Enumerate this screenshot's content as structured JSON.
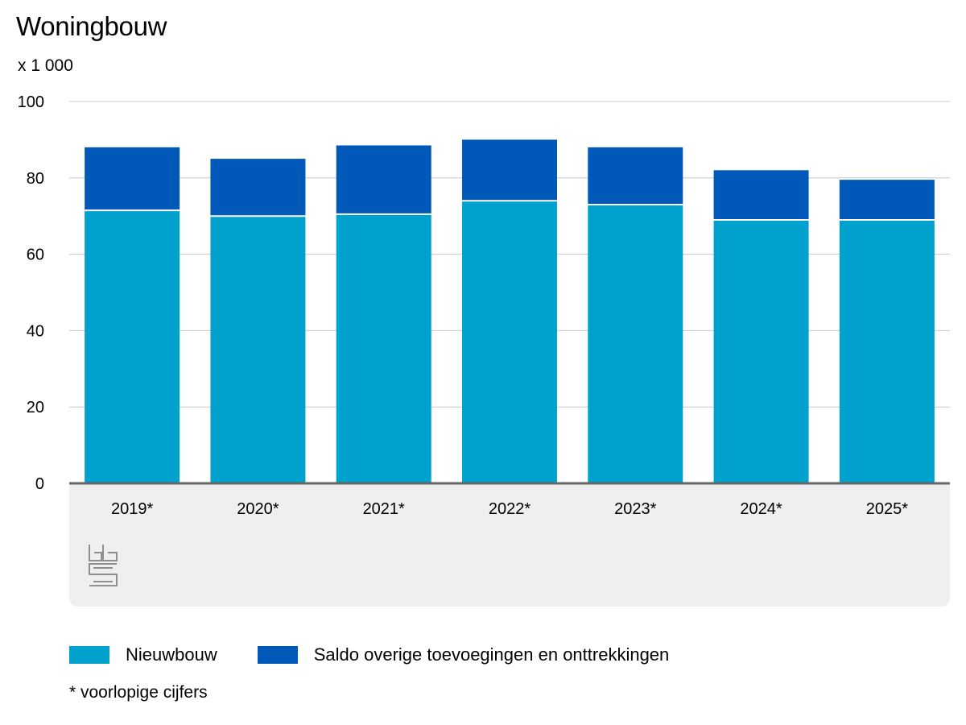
{
  "header": {
    "title": "Woningbouw",
    "unit": "x 1 000"
  },
  "colors": {
    "nieuwbouw": "#00a1cd",
    "saldo": "#0058b8",
    "grid": "#c8c8c8",
    "axis": "#666666",
    "panel": "#efefef",
    "logo": "#8f8f8f"
  },
  "logo_icon": "cbs-logo-icon",
  "chart_data": {
    "type": "bar",
    "stacked": true,
    "categories": [
      "2019*",
      "2020*",
      "2021*",
      "2022*",
      "2023*",
      "2024*",
      "2025*"
    ],
    "series": [
      {
        "name": "Nieuwbouw",
        "values": [
          71.5,
          70,
          70.5,
          74,
          73,
          69,
          69
        ]
      },
      {
        "name": "Saldo overige toevoegingen en onttrekkingen",
        "values": [
          16.5,
          15,
          18,
          16,
          15,
          13,
          10.5
        ]
      }
    ],
    "ylim": [
      0,
      100
    ],
    "yticks": [
      0,
      20,
      40,
      60,
      80,
      100
    ],
    "grid": true,
    "legend": "bottom-left"
  },
  "legend": {
    "items": [
      "Nieuwbouw",
      "Saldo overige toevoegingen en onttrekkingen"
    ]
  },
  "footnote": "* voorlopige cijfers"
}
